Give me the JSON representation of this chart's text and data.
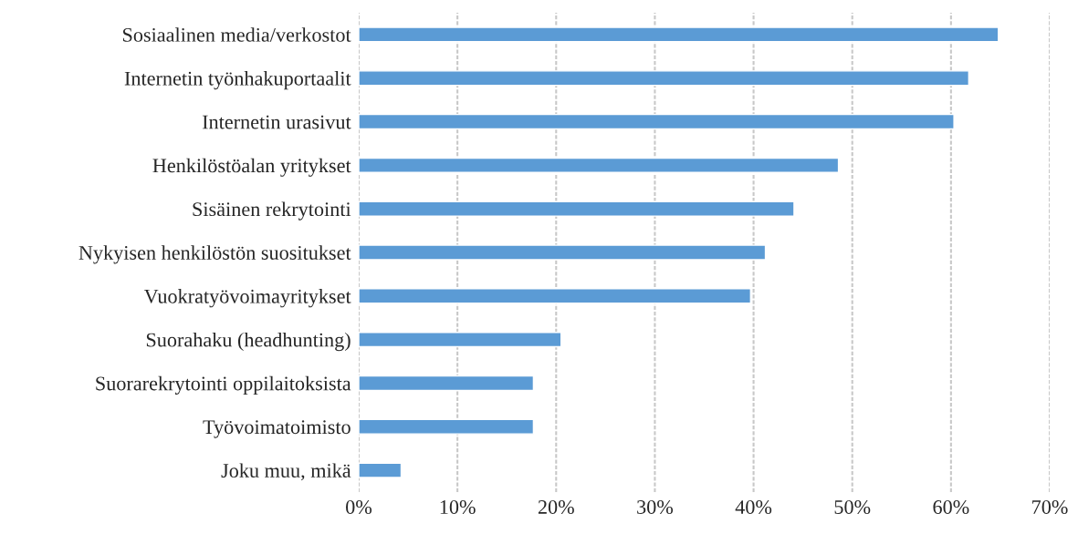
{
  "chart_data": {
    "type": "bar",
    "orientation": "horizontal",
    "categories": [
      "Sosiaalinen media/verkostot",
      "Internetin työnhakuportaalit",
      "Internetin urasivut",
      "Henkilöstöalan yritykset",
      "Sisäinen rekrytointi",
      "Nykyisen henkilöstön suositukset",
      "Vuokratyövoimayritykset",
      "Suorahaku (headhunting)",
      "Suorarekrytointi oppilaitoksista",
      "Työvoimatoimisto",
      "Joku muu, mikä"
    ],
    "values": [
      64.8,
      61.8,
      60.3,
      48.6,
      44.1,
      41.2,
      39.7,
      20.5,
      17.7,
      17.7,
      4.3
    ],
    "color": "#5b9bd5",
    "xlim": [
      0,
      70
    ],
    "xticks": [
      {
        "value": 0,
        "label": "0%"
      },
      {
        "value": 10,
        "label": "10%"
      },
      {
        "value": 20,
        "label": "20%"
      },
      {
        "value": 30,
        "label": "30%"
      },
      {
        "value": 40,
        "label": "40%"
      },
      {
        "value": 50,
        "label": "50%"
      },
      {
        "value": 60,
        "label": "60%"
      },
      {
        "value": 70,
        "label": "70%"
      }
    ],
    "grid": "x"
  }
}
